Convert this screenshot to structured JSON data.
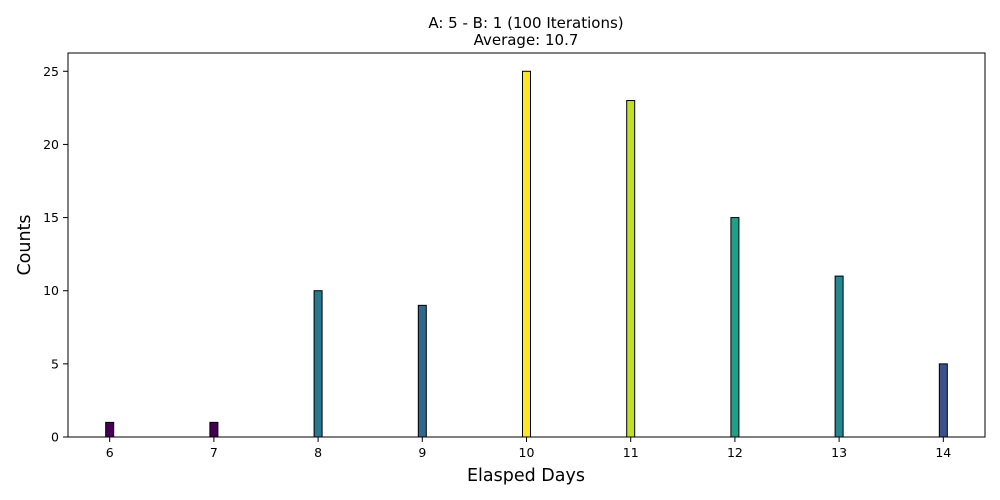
{
  "chart_data": {
    "type": "bar",
    "title": "A: 5 - B: 1 (100 Iterations)",
    "subtitle": "Average: 10.7",
    "xlabel": "Elasped Days",
    "ylabel": "Counts",
    "x": [
      6,
      7,
      8,
      9,
      10,
      11,
      12,
      13,
      14
    ],
    "values": [
      1,
      1,
      10,
      9,
      25,
      23,
      15,
      11,
      5
    ],
    "bar_colors": [
      "#440154",
      "#440154",
      "#2a788e",
      "#31688e",
      "#fde725",
      "#c2df23",
      "#1fa187",
      "#24868e",
      "#3b518b"
    ],
    "edge_color": "#000000",
    "xlim": [
      5.6,
      14.4
    ],
    "ylim": [
      0,
      26.25
    ],
    "xticks": [
      6,
      7,
      8,
      9,
      10,
      11,
      12,
      13,
      14
    ],
    "yticks": [
      0,
      5,
      10,
      15,
      20,
      25
    ],
    "grid": false,
    "legend": "none"
  }
}
